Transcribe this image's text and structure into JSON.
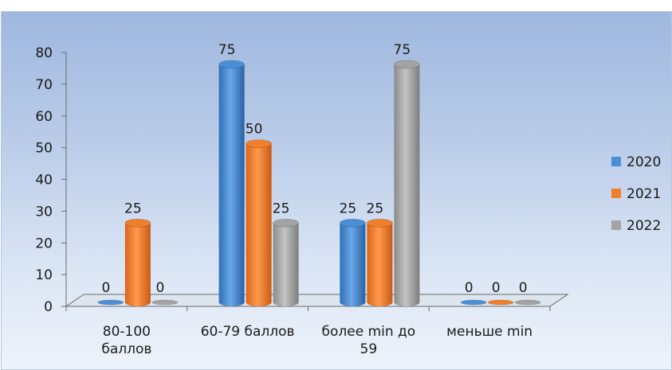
{
  "chart_data": {
    "type": "bar",
    "categories": [
      [
        "80-100",
        "баллов"
      ],
      [
        "60-79 баллов"
      ],
      [
        "более min до",
        "59"
      ],
      [
        "меньше min"
      ]
    ],
    "series": [
      {
        "name": "2020",
        "values": [
          0,
          75,
          25,
          0
        ],
        "color": "#4a8fd6"
      },
      {
        "name": "2021",
        "values": [
          25,
          50,
          25,
          0
        ],
        "color": "#f07f2a"
      },
      {
        "name": "2022",
        "values": [
          0,
          25,
          75,
          0
        ],
        "color": "#a3a3a3"
      }
    ],
    "y_ticks": [
      "0",
      "10",
      "20",
      "30",
      "40",
      "50",
      "60",
      "70",
      "80"
    ],
    "ylim": [
      0,
      80
    ],
    "legend_position": "right",
    "grid": false,
    "style": "3d-cylinder"
  }
}
